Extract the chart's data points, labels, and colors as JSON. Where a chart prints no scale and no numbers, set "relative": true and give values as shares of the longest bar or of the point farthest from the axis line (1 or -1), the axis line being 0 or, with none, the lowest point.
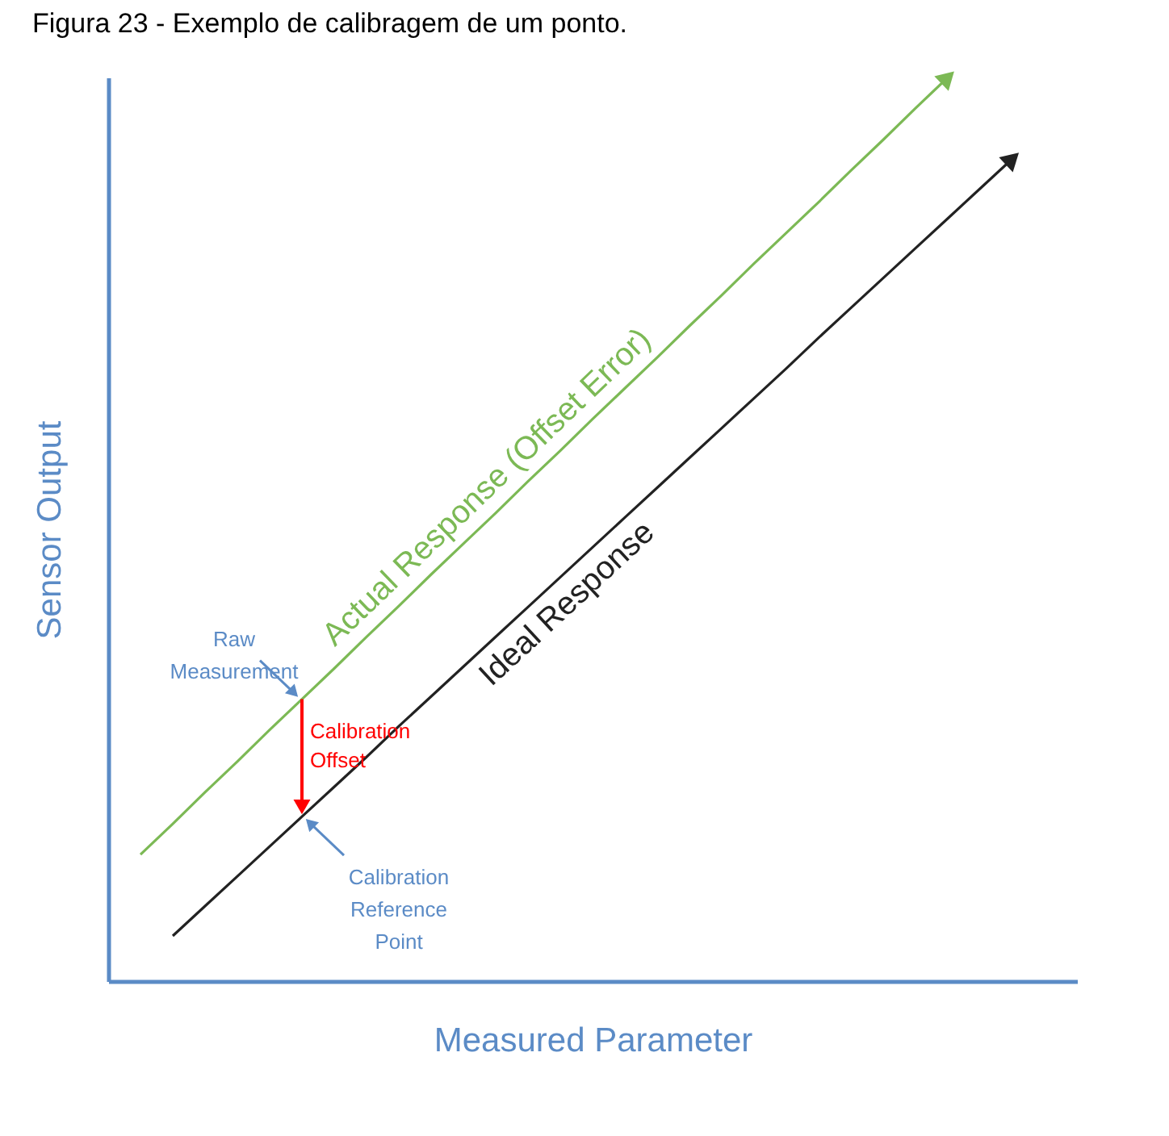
{
  "chart_data": {
    "type": "line",
    "title": "Figura 23 - Exemplo de calibragem de um ponto.",
    "xlabel": "Measured Parameter",
    "ylabel": "Sensor Output",
    "relative": true,
    "categories": [
      null,
      null,
      null,
      null,
      null,
      null,
      null,
      null,
      null,
      null,
      null,
      null,
      null,
      null,
      null,
      null,
      null,
      null,
      null,
      null,
      null,
      null,
      null,
      null,
      null,
      null,
      null,
      null,
      null,
      null,
      null
    ],
    "series": [
      {
        "name": "Actual Response (Offset Error)",
        "color": "#7cb955",
        "values": [
          null,
          0.14,
          0.174,
          0.209,
          0.243,
          0.278,
          0.312,
          0.346,
          0.381,
          0.415,
          0.45,
          0.484,
          0.518,
          0.553,
          0.587,
          0.622,
          0.656,
          0.69,
          0.725,
          0.759,
          0.794,
          0.828,
          0.862,
          0.897,
          0.931,
          0.966,
          1.0,
          null,
          null,
          null,
          null
        ]
      },
      {
        "name": "Ideal Response",
        "color": "#222222",
        "values": [
          null,
          null,
          0.05,
          0.083,
          0.116,
          0.149,
          0.182,
          0.215,
          0.248,
          0.282,
          0.315,
          0.348,
          0.381,
          0.414,
          0.447,
          0.48,
          0.513,
          0.546,
          0.579,
          0.612,
          0.645,
          0.678,
          0.712,
          0.745,
          0.778,
          0.811,
          0.844,
          0.877,
          0.91,
          null,
          null
        ]
      }
    ],
    "annotations": [
      "Raw Measurement",
      "Calibration Offset",
      "Calibration Reference Point"
    ]
  }
}
